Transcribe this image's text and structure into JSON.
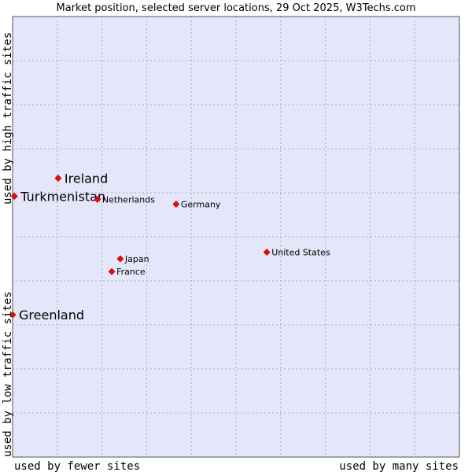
{
  "chart_data": {
    "type": "scatter",
    "title": "Market position, selected server locations, 29 Oct 2025, W3Techs.com",
    "xlabel_low": "used by fewer sites",
    "xlabel_high": "used by many sites",
    "ylabel_low": "used by low traffic sites",
    "ylabel_high": "used by high traffic sites",
    "xlim": [
      0,
      100
    ],
    "ylim": [
      0,
      100
    ],
    "grid": true,
    "colors": {
      "plot_bg": "#e4e6f9",
      "grid": "#a9a9c9",
      "border": "#555555",
      "point": "#ff0000",
      "point_edge": "#990000"
    },
    "points": [
      {
        "name": "Ireland",
        "x": 10.2,
        "y": 63.3,
        "size": "large"
      },
      {
        "name": "Turkmenistan",
        "x": 0.4,
        "y": 59.2,
        "size": "large"
      },
      {
        "name": "Netherlands",
        "x": 19.0,
        "y": 58.5,
        "size": "small"
      },
      {
        "name": "Germany",
        "x": 36.6,
        "y": 57.4,
        "size": "small"
      },
      {
        "name": "United States",
        "x": 56.9,
        "y": 46.5,
        "size": "small"
      },
      {
        "name": "Japan",
        "x": 24.1,
        "y": 45.0,
        "size": "small"
      },
      {
        "name": "France",
        "x": 22.2,
        "y": 42.1,
        "size": "small"
      },
      {
        "name": "Greenland",
        "x": 0.0,
        "y": 32.3,
        "size": "large"
      }
    ]
  }
}
